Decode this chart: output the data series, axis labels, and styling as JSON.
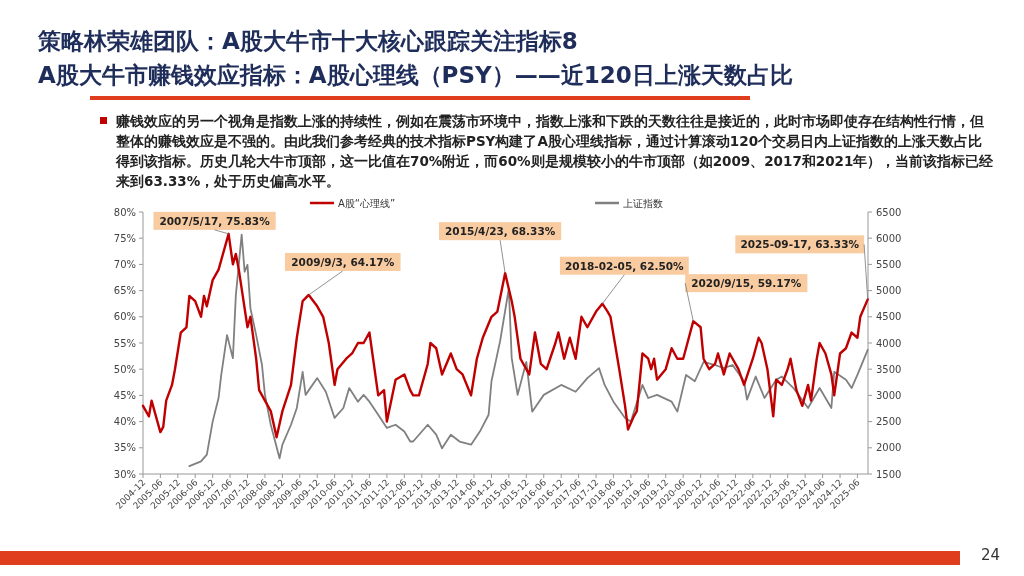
{
  "chart_data": {
    "type": "line",
    "title": "策略林荣雄团队：A股大牛市十大核心跟踪关注指标8",
    "subtitle": "A股大牛市赚钱效应指标：A股心理线（PSY）——近120日上涨天数占比",
    "annotations": [
      "赚钱效应的另一个视角是指数上涨的持续性，例如在震荡市环境中，指数上涨和下跌的天数往往是接近的，此时市场即使存在结构性行情，但整体的赚钱效应是不强的。由此我们参考经典的技术指标PSY构建了A股心理线指标，通过计算滚动120个交易日内上证指数的上涨天数占比得到该指标。历史几轮大牛市顶部，这一比值在70%附近，而60%则是规模较小的牛市顶部（如2009、2017和2021年），当前该指标已经来到63.33%，处于历史偏高水平。",
      "24",
      {
        "text": "2007/5/17, 75.83%",
        "x": "2007-05-17",
        "y": 75.83
      },
      {
        "text": "2009/9/3, 64.17%",
        "x": "2009-09-03",
        "y": 64.17
      },
      {
        "text": "2015/4/23, 68.33%",
        "x": "2015-04-23",
        "y": 68.33
      },
      {
        "text": "2018-02-05, 62.50%",
        "x": "2018-02-05",
        "y": 62.5
      },
      {
        "text": "2020/9/15, 59.17%",
        "x": "2020-09-15",
        "y": 59.17
      },
      {
        "text": "2025-09-17, 63.33%",
        "x": "2025-09-17",
        "y": 63.33
      }
    ],
    "xlim": [
      "2004-12",
      "2025-09-20"
    ],
    "xticks": [
      "2004-12",
      "2005-06",
      "2005-12",
      "2006-06",
      "2006-12",
      "2007-06",
      "2007-12",
      "2008-06",
      "2008-12",
      "2009-06",
      "2009-12",
      "2010-06",
      "2010-12",
      "2011-06",
      "2011-12",
      "2012-06",
      "2012-12",
      "2013-06",
      "2013-12",
      "2014-06",
      "2014-12",
      "2015-06",
      "2015-12",
      "2016-06",
      "2016-12",
      "2017-06",
      "2017-12",
      "2018-06",
      "2018-12",
      "2019-06",
      "2019-12",
      "2020-06",
      "2020-12",
      "2021-06",
      "2021-12",
      "2022-06",
      "2022-12",
      "2023-06",
      "2023-12",
      "2024-06",
      "2024-12",
      "2025-06"
    ],
    "ylim": [
      30,
      80
    ],
    "yticks": [
      {
        "value": 30,
        "label": "30%"
      },
      {
        "value": 35,
        "label": "35%"
      },
      {
        "value": 40,
        "label": "40%"
      },
      {
        "value": 45,
        "label": "45%"
      },
      {
        "value": 50,
        "label": "50%"
      },
      {
        "value": 55,
        "label": "55%"
      },
      {
        "value": 60,
        "label": "60%"
      },
      {
        "value": 65,
        "label": "65%"
      },
      {
        "value": 70,
        "label": "70%"
      },
      {
        "value": 75,
        "label": "75%"
      },
      {
        "value": 80,
        "label": "80%"
      }
    ],
    "y2lim": [
      1500,
      6500
    ],
    "y2ticks": [
      1500,
      2000,
      2500,
      3000,
      3500,
      4000,
      4500,
      5000,
      5500,
      6000,
      6500
    ],
    "legend": "top",
    "grid": false,
    "series": [
      {
        "name": "A股“心理线”",
        "color": "#c00000",
        "x": [
          "2004-12",
          "2005-02",
          "2005-03",
          "2005-05",
          "2005-06",
          "2005-07",
          "2005-08",
          "2005-10",
          "2005-11",
          "2006-01",
          "2006-03",
          "2006-04",
          "2006-06",
          "2006-08",
          "2006-09",
          "2006-10",
          "2006-12",
          "2007-02",
          "2007-05-17",
          "2007-07",
          "2007-08",
          "2007-09",
          "2007-12",
          "2008-01",
          "2008-03",
          "2008-04",
          "2008-06",
          "2008-08",
          "2008-10",
          "2008-12",
          "2009-03",
          "2009-05",
          "2009-07",
          "2009-09-03",
          "2009-12",
          "2010-02",
          "2010-04",
          "2010-06",
          "2010-07",
          "2010-10",
          "2010-12",
          "2011-02",
          "2011-04",
          "2011-06",
          "2011-09",
          "2011-11",
          "2011-12",
          "2012-03",
          "2012-06",
          "2012-08",
          "2012-09",
          "2012-11",
          "2013-02",
          "2013-03",
          "2013-05",
          "2013-07",
          "2013-10",
          "2013-12",
          "2014-02",
          "2014-05",
          "2014-07",
          "2014-09",
          "2014-12",
          "2015-02",
          "2015-04-23",
          "2015-07",
          "2015-08",
          "2015-10",
          "2015-12",
          "2016-01",
          "2016-03",
          "2016-05",
          "2016-07",
          "2016-10",
          "2016-11",
          "2017-01",
          "2017-03",
          "2017-05",
          "2017-07",
          "2017-09",
          "2017-12",
          "2018-02-05",
          "2018-04",
          "2018-05",
          "2018-08",
          "2018-10",
          "2018-11",
          "2019-01",
          "2019-02",
          "2019-04",
          "2019-06",
          "2019-07",
          "2019-08",
          "2019-09",
          "2019-12",
          "2020-02",
          "2020-04",
          "2020-06",
          "2020-07",
          "2020-09-15",
          "2020-12",
          "2021-01",
          "2021-03",
          "2021-05",
          "2021-06",
          "2021-08",
          "2021-10",
          "2021-11",
          "2022-01",
          "2022-03",
          "2022-06",
          "2022-08",
          "2022-09",
          "2022-11",
          "2023-01",
          "2023-02",
          "2023-04",
          "2023-06",
          "2023-07",
          "2023-09",
          "2023-11",
          "2024-01",
          "2024-02",
          "2024-04",
          "2024-05",
          "2024-07",
          "2024-09",
          "2024-10",
          "2024-12",
          "2025-02",
          "2025-04",
          "2025-06",
          "2025-07",
          "2025-09-17"
        ],
        "values": [
          43,
          41,
          44,
          40,
          38,
          39,
          44,
          47,
          50,
          57,
          58,
          64,
          63,
          60,
          64,
          62,
          67,
          69,
          75.83,
          70,
          72,
          69,
          58,
          60,
          52,
          46,
          44,
          42,
          37,
          42,
          47,
          56,
          63,
          64.17,
          62,
          60,
          55,
          47,
          50,
          52,
          53,
          55,
          55,
          57,
          45,
          46,
          40,
          48,
          49,
          46,
          45,
          45,
          51,
          55,
          54,
          49,
          53,
          50,
          49,
          45,
          52,
          56,
          60,
          61,
          68.33,
          63,
          60,
          52,
          50,
          49,
          57,
          51,
          50,
          55,
          57,
          52,
          56,
          52,
          60,
          58,
          61,
          62.5,
          61,
          60,
          50,
          43,
          38.5,
          41,
          42,
          53,
          52,
          50,
          52,
          48,
          50,
          54,
          52,
          52,
          54,
          59.17,
          58,
          52,
          50,
          51,
          53,
          49,
          53,
          52,
          50,
          47,
          52,
          56,
          55,
          50,
          41,
          48,
          47,
          50,
          52,
          46,
          43,
          47,
          44,
          52,
          55,
          53,
          49,
          45,
          53,
          54,
          57,
          56,
          60,
          63.33
        ]
      },
      {
        "name": "上证指数",
        "color": "#808080",
        "axis": "y2",
        "x": [
          "2006-04",
          "2006-08",
          "2006-10",
          "2006-12",
          "2007-02",
          "2007-03",
          "2007-05",
          "2007-07",
          "2007-08",
          "2007-10",
          "2007-11",
          "2007-12",
          "2008-01",
          "2008-03",
          "2008-05",
          "2008-06",
          "2008-08",
          "2008-11",
          "2008-12",
          "2009-03",
          "2009-05",
          "2009-07",
          "2009-08",
          "2009-12",
          "2010-03",
          "2010-06",
          "2010-09",
          "2010-11",
          "2011-02",
          "2011-04",
          "2011-06",
          "2011-09",
          "2011-12",
          "2012-03",
          "2012-06",
          "2012-08",
          "2012-09",
          "2013-02",
          "2013-05",
          "2013-07",
          "2013-10",
          "2014-01",
          "2014-05",
          "2014-08",
          "2014-11",
          "2014-12",
          "2015-03",
          "2015-06",
          "2015-07",
          "2015-09",
          "2015-12",
          "2016-02",
          "2016-06",
          "2016-12",
          "2017-05",
          "2017-09",
          "2018-01",
          "2018-03",
          "2018-06",
          "2018-10",
          "2018-12",
          "2019-04",
          "2019-06",
          "2019-09",
          "2020-02",
          "2020-04",
          "2020-07",
          "2020-10",
          "2021-01",
          "2021-05",
          "2021-08",
          "2021-11",
          "2022-03",
          "2022-04",
          "2022-07",
          "2022-10",
          "2023-02",
          "2023-04",
          "2023-08",
          "2024-01",
          "2024-05",
          "2024-09",
          "2024-10",
          "2025-02",
          "2025-04",
          "2025-06",
          "2025-09-17"
        ],
        "values": [
          1650,
          1740,
          1870,
          2500,
          2950,
          3390,
          4150,
          3710,
          4910,
          6070,
          5360,
          5490,
          4660,
          4150,
          3580,
          3010,
          2440,
          1800,
          2060,
          2440,
          2760,
          3450,
          3010,
          3330,
          3070,
          2570,
          2760,
          3140,
          2880,
          3010,
          2880,
          2630,
          2380,
          2440,
          2310,
          2120,
          2120,
          2440,
          2250,
          1990,
          2250,
          2120,
          2060,
          2310,
          2630,
          3270,
          4030,
          5040,
          3710,
          3010,
          3640,
          2690,
          3010,
          3200,
          3070,
          3330,
          3520,
          3200,
          2880,
          2570,
          2500,
          3200,
          2950,
          3010,
          2880,
          2690,
          3390,
          3270,
          3640,
          3580,
          3520,
          3580,
          3270,
          2920,
          3360,
          2950,
          3300,
          3360,
          3140,
          2760,
          3140,
          2760,
          3450,
          3300,
          3140,
          3390,
          3870
        ]
      }
    ]
  }
}
